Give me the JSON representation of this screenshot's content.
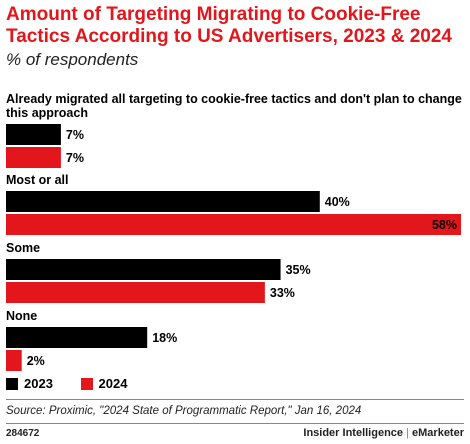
{
  "header": {
    "title": "Amount of Targeting Migrating to Cookie-Free Tactics According to US Advertisers, 2023 & 2024",
    "subtitle": "% of respondents"
  },
  "colors": {
    "series_2023": "#000000",
    "series_2024": "#e3161c"
  },
  "chart_data": {
    "type": "bar",
    "orientation": "horizontal",
    "categories": [
      "Already migrated all targeting to cookie-free tactics and don't plan to change this approach",
      "Most or all",
      "Some",
      "None"
    ],
    "series": [
      {
        "name": "2023",
        "values": [
          7,
          40,
          35,
          18
        ],
        "labels": [
          "7%",
          "40%",
          "35%",
          "18%"
        ]
      },
      {
        "name": "2024",
        "values": [
          7,
          58,
          33,
          2
        ],
        "labels": [
          "7%",
          "58%",
          "33%",
          "2%"
        ]
      }
    ],
    "xlim": [
      0,
      58
    ],
    "grid": false,
    "legend": "bottom-left"
  },
  "legend": {
    "items": [
      "2023",
      "2024"
    ]
  },
  "footer": {
    "source": "Source: Proximic, \"2024 State of Programmatic Report,\" Jan 16, 2024",
    "id": "284672",
    "brand_left": "Insider Intelligence",
    "brand_sep": "|",
    "brand_right": "eMarketer"
  }
}
